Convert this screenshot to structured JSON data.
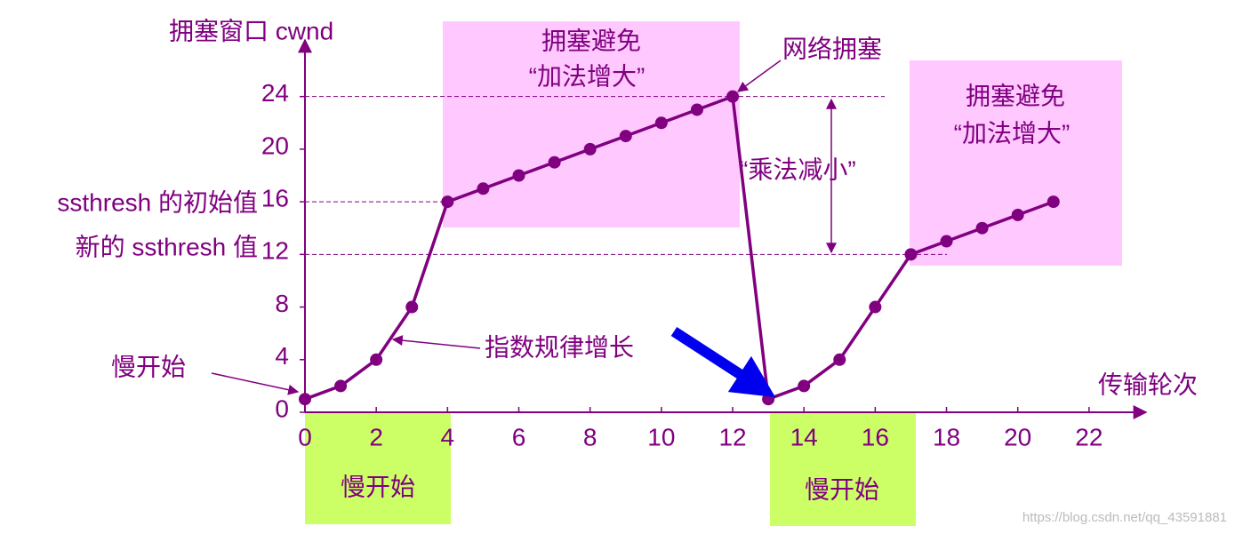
{
  "chart_data": {
    "type": "line",
    "ylabel": "拥塞窗口 cwnd",
    "xlabel": "传输轮次",
    "x": [
      0,
      1,
      2,
      3,
      4,
      5,
      6,
      7,
      8,
      9,
      10,
      11,
      12,
      13,
      14,
      15,
      16,
      17,
      18,
      19,
      20,
      21
    ],
    "values": [
      1,
      2,
      4,
      8,
      16,
      17,
      18,
      19,
      20,
      21,
      22,
      23,
      24,
      1,
      2,
      4,
      8,
      12,
      13,
      14,
      15,
      16
    ],
    "color": "#800080",
    "xlim": [
      0,
      23.6
    ],
    "ylim": [
      0,
      28.3
    ],
    "xticks": [
      0,
      2,
      4,
      6,
      8,
      10,
      12,
      14,
      16,
      18,
      20,
      22
    ],
    "yticks": [
      0,
      4,
      8,
      12,
      16,
      20,
      24
    ],
    "annotations": [
      "ssthresh 的初始值",
      "新的 ssthresh 值",
      "拥塞避免",
      "“加法增大”",
      "网络拥塞",
      "“乘法减小”",
      "拥塞避免",
      "“加法增大”",
      "指数规律增长",
      "慢开始",
      "慢开始",
      "慢开始",
      "https://blog.csdn.net/qq_43591881"
    ]
  }
}
